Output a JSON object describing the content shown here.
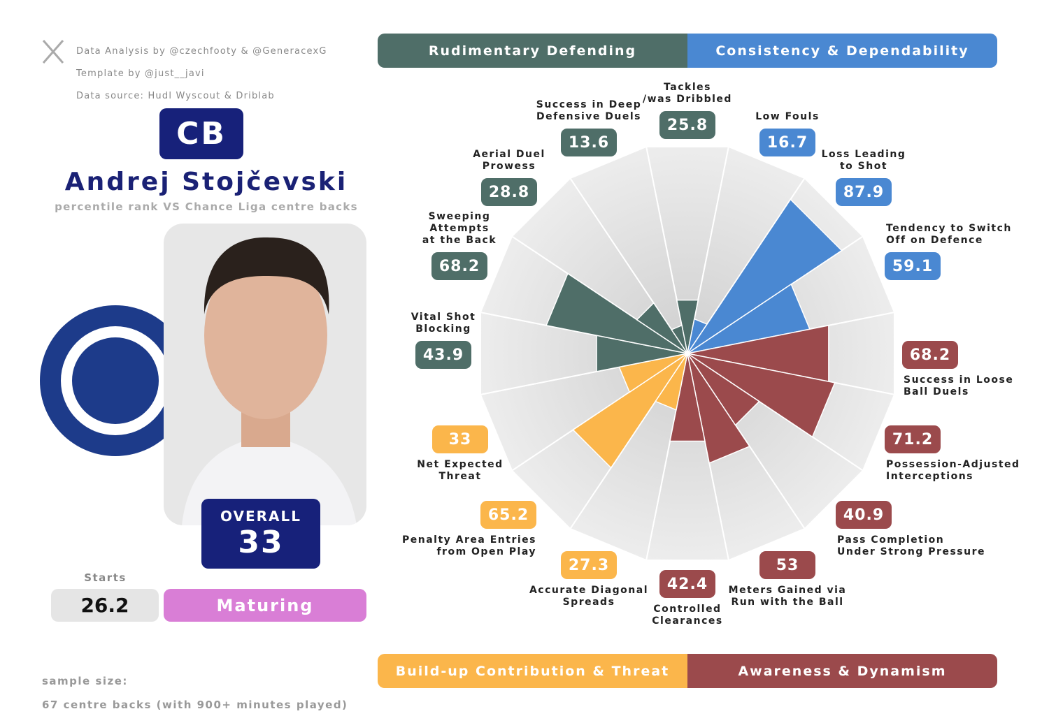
{
  "credits": [
    "Data Analysis by @czechfooty & @GeneracexG",
    "Template by @just__javi",
    "Data source: Hudl Wyscout & Driblab"
  ],
  "player": {
    "position": "CB",
    "name": "Andrej Stojčevski",
    "subtitle": "percentile rank VS Chance Liga centre backs",
    "overall_label": "OVERALL",
    "overall": 33,
    "starts_label": "Starts",
    "starts": 26.2,
    "status": "Maturing"
  },
  "sample": {
    "title": "sample size:",
    "text": "67 centre backs (with 900+ minutes played)"
  },
  "chart_data": {
    "type": "pizza",
    "categories": [
      "Tackles\n/was Dribbled",
      "Low Fouls",
      "Loss Leading\nto Shot",
      "Tendency to Switch\nOff on Defence",
      "Success in Loose\nBall Duels",
      "Possession-Adjusted\nInterceptions",
      "Pass Completion\nUnder Strong Pressure",
      "Meters Gained via\nRun with the Ball",
      "Controlled\nClearances",
      "Accurate Diagonal\nSpreads",
      "Penalty Area Entries\nfrom Open Play",
      "Net Expected\nThreat",
      "Vital Shot\nBlocking",
      "Sweeping\nAttempts\nat the Back",
      "Aerial Duel\nProwess",
      "Success in Deep\nDefensive Duels"
    ],
    "values": [
      25.8,
      16.7,
      87.9,
      59.1,
      68.2,
      71.2,
      40.9,
      53,
      42.4,
      27.3,
      65.2,
      33,
      43.9,
      68.2,
      28.8,
      13.6
    ],
    "colors": [
      "#4f6e68",
      "#4a88d2",
      "#4a88d2",
      "#4a88d2",
      "#9b4a4c",
      "#9b4a4c",
      "#9b4a4c",
      "#9b4a4c",
      "#9b4a4c",
      "#fbb64b",
      "#fbb64b",
      "#fbb64b",
      "#4f6e68",
      "#4f6e68",
      "#4f6e68",
      "#4f6e68"
    ],
    "rlim": [
      0,
      100
    ],
    "groups": [
      {
        "name": "Rudimentary Defending",
        "color": "#4f6e68"
      },
      {
        "name": "Consistency & Dependability",
        "color": "#4a88d2"
      },
      {
        "name": "Build-up Contribution & Threat",
        "color": "#fbb64b"
      },
      {
        "name": "Awareness & Dynamism",
        "color": "#9b4a4c"
      }
    ]
  }
}
